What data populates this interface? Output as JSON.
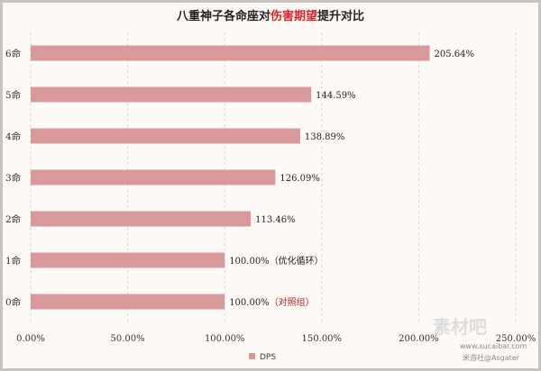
{
  "chart_data": {
    "type": "bar",
    "orientation": "horizontal",
    "title_parts": [
      {
        "text": "八重神子各命座对",
        "highlight": false
      },
      {
        "text": "伤害期望",
        "highlight": true
      },
      {
        "text": "提升对比",
        "highlight": false
      }
    ],
    "highlight_color": "#d8232a",
    "categories": [
      "6命",
      "5命",
      "4命",
      "3命",
      "2命",
      "1命",
      "0命"
    ],
    "series": [
      {
        "name": "DPS",
        "color": "#d9999b",
        "values": [
          205.64,
          144.59,
          138.89,
          126.09,
          113.46,
          100.0,
          100.0
        ]
      }
    ],
    "data_labels": [
      "205.64%",
      "144.59%",
      "138.89%",
      "126.09%",
      "113.46%",
      "100.00%",
      "100.00%"
    ],
    "label_notes": [
      "",
      "",
      "",
      "",
      "",
      "（优化循环）",
      "（对照组）"
    ],
    "note_colors": [
      "",
      "",
      "",
      "",
      "",
      "#222222",
      "#b0232a"
    ],
    "xlim": [
      0,
      250
    ],
    "xticks": [
      "0.00%",
      "50.00%",
      "100.00%",
      "150.00%",
      "200.00%",
      "250.00%"
    ],
    "grid": "vertical dashed",
    "legend": {
      "position": "bottom",
      "label": "DPS"
    }
  },
  "watermark": {
    "site_text": "素材吧",
    "url": "www.sucaibar.com",
    "credit": "米游社@Asgater"
  }
}
